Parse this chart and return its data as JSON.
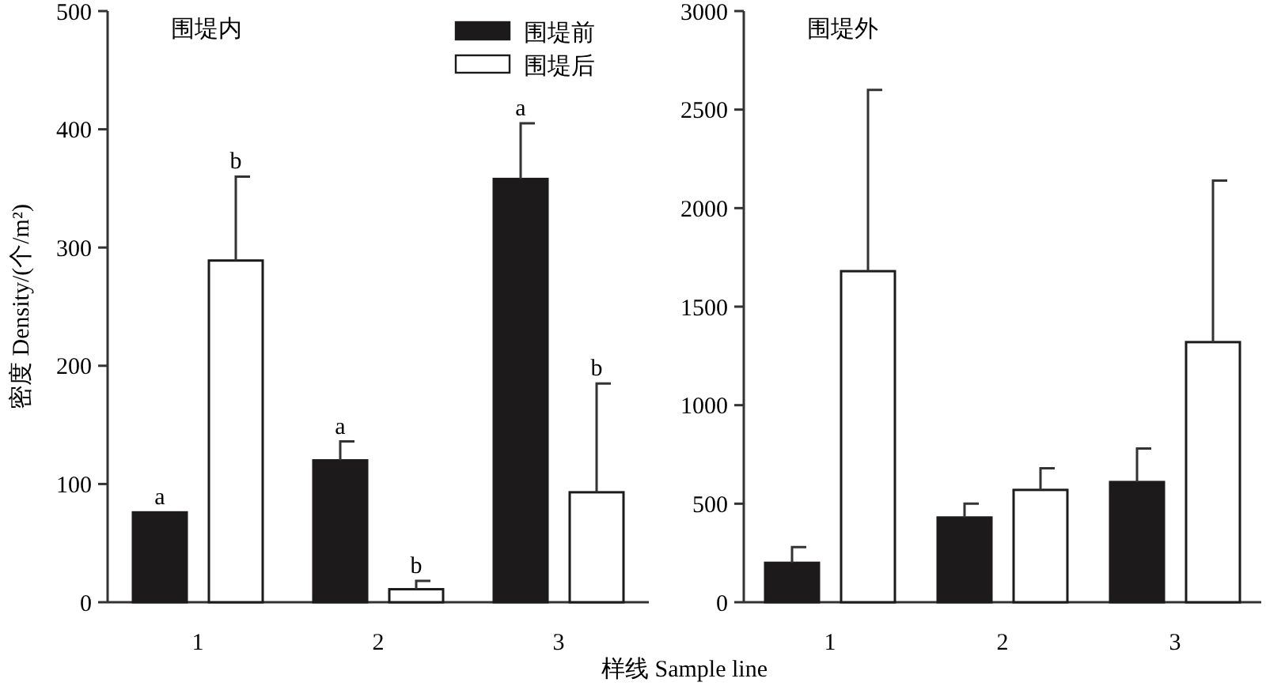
{
  "chart_data": [
    {
      "type": "bar",
      "title": "围堤内",
      "xlabel": "样线 Sample line",
      "ylabel": "密度 Density/(个/m²)",
      "categories": [
        "1",
        "2",
        "3"
      ],
      "series": [
        {
          "name": "围堤前",
          "color": "#1c1a1a",
          "values": [
            76,
            120,
            358
          ],
          "errors": [
            null,
            16,
            47
          ]
        },
        {
          "name": "围堤后",
          "color": "#ffffff",
          "values": [
            289,
            11,
            93
          ],
          "errors": [
            71,
            7,
            92
          ]
        }
      ],
      "ylim": [
        0,
        500
      ],
      "yticks": [
        0,
        100,
        200,
        300,
        400,
        500
      ],
      "legend": "top right",
      "annotations": [
        "a",
        "b",
        "a",
        "b",
        "a",
        "b"
      ]
    },
    {
      "type": "bar",
      "title": "围堤外",
      "categories": [
        "1",
        "2",
        "3"
      ],
      "series": [
        {
          "color": "#1c1a1a",
          "values": [
            200,
            430,
            610
          ],
          "errors": [
            80,
            70,
            170
          ]
        },
        {
          "color": "#ffffff",
          "values": [
            1680,
            570,
            1320
          ],
          "errors": [
            920,
            110,
            820
          ]
        }
      ],
      "ylim": [
        0,
        3000
      ],
      "yticks": [
        0,
        500,
        1000,
        1500,
        2000,
        2500,
        3000
      ]
    }
  ]
}
